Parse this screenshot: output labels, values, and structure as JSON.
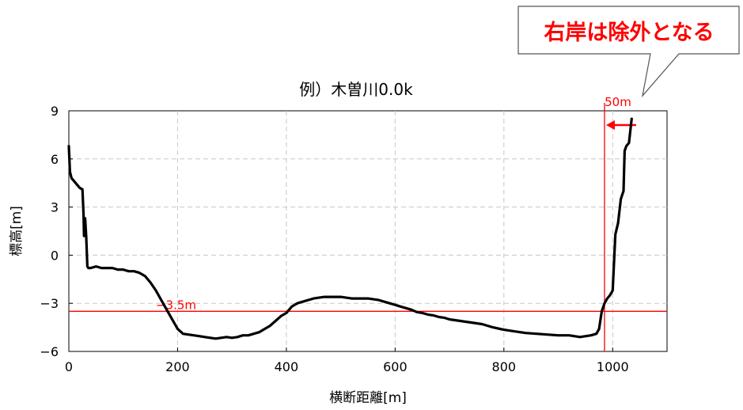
{
  "callout": {
    "text": "右岸は除外となる",
    "color": "#ff0000"
  },
  "chart_data": {
    "type": "line",
    "title": "例）木曽川0.0k",
    "xlabel": "横断距離[m]",
    "ylabel": "標高[m]",
    "xlim": [
      0,
      1100
    ],
    "ylim": [
      -6,
      9
    ],
    "x_ticks": [
      0,
      200,
      400,
      600,
      800,
      1000
    ],
    "y_ticks": [
      -6,
      -3,
      0,
      3,
      6,
      9
    ],
    "x_tick_labels": [
      "0",
      "200",
      "400",
      "600",
      "800",
      "1000"
    ],
    "y_tick_labels": [
      "−6",
      "−3",
      "0",
      "3",
      "6",
      "9"
    ],
    "grid": true,
    "series": [
      {
        "color": "#000000",
        "x": [
          0,
          2,
          5,
          10,
          20,
          25,
          27,
          28,
          30,
          32,
          34,
          36,
          40,
          50,
          60,
          70,
          80,
          90,
          100,
          110,
          120,
          130,
          140,
          150,
          160,
          170,
          180,
          190,
          200,
          210,
          220,
          230,
          240,
          250,
          260,
          270,
          280,
          290,
          300,
          310,
          320,
          330,
          340,
          350,
          360,
          370,
          380,
          390,
          400,
          410,
          420,
          430,
          440,
          450,
          460,
          470,
          480,
          490,
          500,
          510,
          520,
          530,
          540,
          550,
          560,
          570,
          580,
          590,
          600,
          610,
          620,
          630,
          640,
          650,
          660,
          670,
          680,
          690,
          700,
          720,
          740,
          760,
          780,
          800,
          820,
          840,
          860,
          880,
          900,
          920,
          940,
          960,
          970,
          975,
          980,
          985,
          990,
          995,
          1000,
          1005,
          1010,
          1015,
          1020,
          1022,
          1025,
          1030,
          1035
        ],
        "y": [
          6.8,
          5.2,
          4.8,
          4.6,
          4.2,
          4.1,
          2.5,
          1.2,
          2.3,
          1.1,
          -0.7,
          -0.8,
          -0.8,
          -0.7,
          -0.8,
          -0.8,
          -0.8,
          -0.9,
          -0.9,
          -1.0,
          -1.0,
          -1.1,
          -1.3,
          -1.7,
          -2.2,
          -2.8,
          -3.4,
          -4.0,
          -4.6,
          -4.9,
          -4.95,
          -5.0,
          -5.05,
          -5.1,
          -5.15,
          -5.2,
          -5.15,
          -5.1,
          -5.15,
          -5.1,
          -5.0,
          -5.0,
          -4.9,
          -4.8,
          -4.6,
          -4.4,
          -4.1,
          -3.8,
          -3.6,
          -3.2,
          -3.0,
          -2.9,
          -2.8,
          -2.7,
          -2.65,
          -2.6,
          -2.6,
          -2.6,
          -2.6,
          -2.65,
          -2.7,
          -2.7,
          -2.7,
          -2.7,
          -2.75,
          -2.8,
          -2.9,
          -3.0,
          -3.1,
          -3.2,
          -3.3,
          -3.4,
          -3.55,
          -3.6,
          -3.7,
          -3.75,
          -3.85,
          -3.9,
          -4.0,
          -4.1,
          -4.2,
          -4.3,
          -4.5,
          -4.65,
          -4.75,
          -4.85,
          -4.9,
          -4.95,
          -5.0,
          -5.0,
          -5.1,
          -5.0,
          -4.9,
          -4.6,
          -3.5,
          -3.0,
          -2.7,
          -2.5,
          -2.2,
          1.3,
          2.0,
          3.5,
          4.0,
          6.5,
          6.8,
          7.0,
          8.5
        ]
      }
    ],
    "annotations": [
      {
        "type": "hline",
        "y": -3.5,
        "label": "−3.5m",
        "color": "#ff0000"
      },
      {
        "type": "vline",
        "x": 985,
        "label": "50m",
        "color": "#ff0000"
      }
    ]
  }
}
